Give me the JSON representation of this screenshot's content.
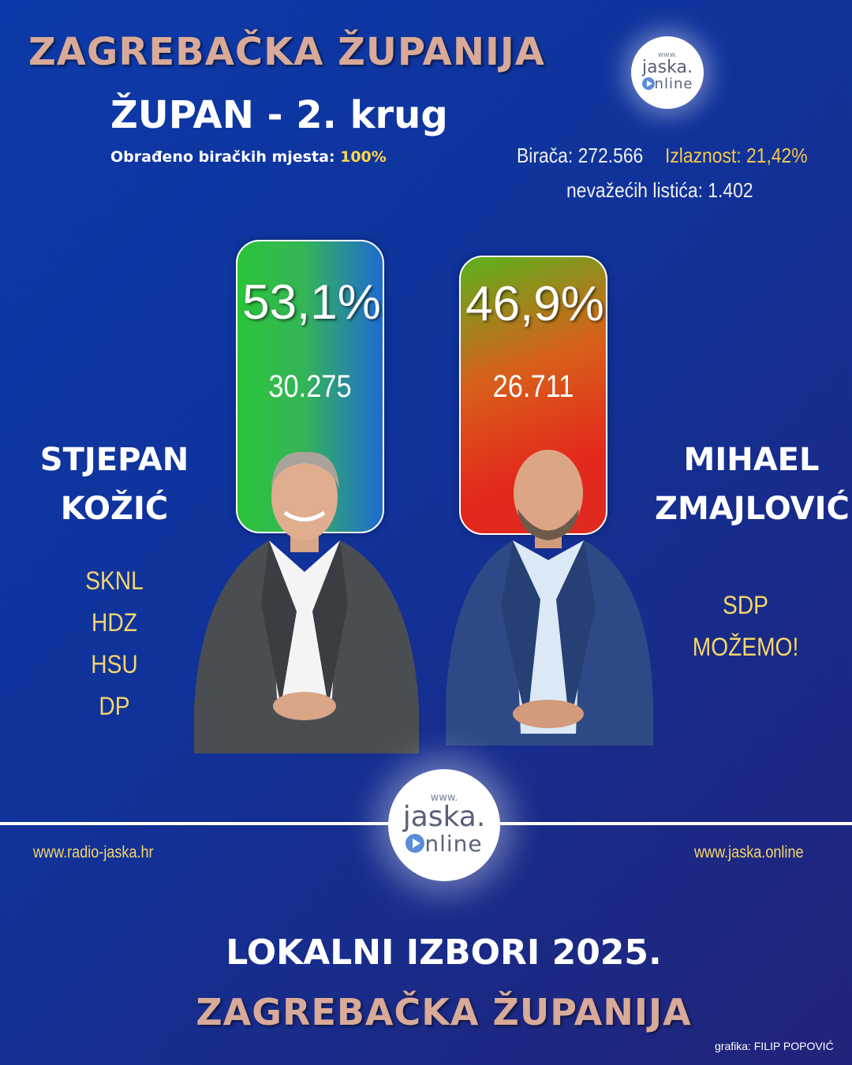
{
  "header": {
    "title": "ZAGREBAČKA ŽUPANIJA",
    "subtitle": "ŽUPAN - 2. krug",
    "processed_label": "Obrađeno biračkih mjesta: ",
    "processed_value": "100%"
  },
  "stats": {
    "voters": "Birača: 272.566",
    "turnout": "Izlaznost: 21,42%",
    "invalid": "nevažećih listića: 1.402"
  },
  "logo": {
    "www": "www.",
    "name": "jaska.",
    "online_suffix": "nline"
  },
  "candidates": [
    {
      "name_line1": "STJEPAN",
      "name_line2": "KOŽIĆ",
      "percent": "53,1%",
      "votes": "30.275",
      "parties": [
        "SKNL",
        "HDZ",
        "HSU",
        "DP"
      ]
    },
    {
      "name_line1": "MIHAEL",
      "name_line2": "ZMAJLOVIĆ",
      "percent": "46,9%",
      "votes": "26.711",
      "parties": [
        "SDP",
        "MOŽEMO!"
      ]
    }
  ],
  "footer": {
    "url_left": "www.radio-jaska.hr",
    "url_right": "www.jaska.online",
    "line1": "LOKALNI IZBORI 2025.",
    "line2": "ZAGREBAČKA ŽUPANIJA",
    "credit": "grafika: FILIP POPOVIĆ"
  },
  "colors": {
    "title": "#d9aa98",
    "accent_yellow": "#f6d66a",
    "winner_green": "#2bc43a",
    "loser_red": "#e3281c"
  }
}
